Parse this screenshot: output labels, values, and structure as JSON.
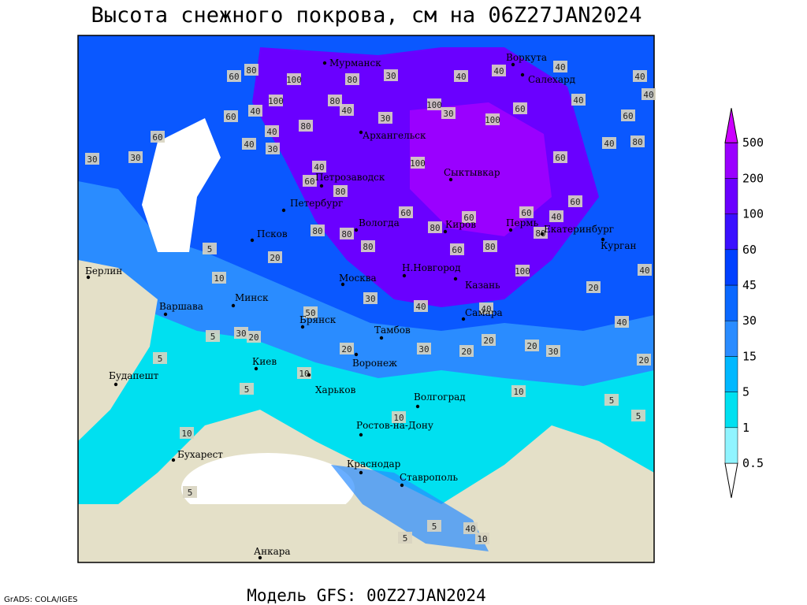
{
  "header": {
    "title": "Высота снежного покрова, см на 06Z27JAN2024"
  },
  "footer": {
    "model": "Модель GFS: 00Z27JAN2024",
    "credit": "GrADS: COLA/IGES"
  },
  "legend": {
    "levels": [
      0.5,
      1,
      5,
      15,
      30,
      45,
      60,
      100,
      200,
      500
    ],
    "colors": [
      "#ffffff",
      "#90f4ff",
      "#00e0f0",
      "#00b8ff",
      "#2a8cff",
      "#0a68ff",
      "#0040ff",
      "#3a10ff",
      "#6a00ff",
      "#9a00ff",
      "#cc00ff"
    ]
  },
  "map_labels": {
    "cities": [
      "Мурманск",
      "Воркута",
      "Салехард",
      "Архангельск",
      "Сыктывкар",
      "Петрозаводск",
      "Петербург",
      "Вологда",
      "Киров",
      "Пермь",
      "Екатеринбург",
      "Курган",
      "Псков",
      "Москва",
      "Н.Новгород",
      "Казань",
      "Берлин",
      "Минск",
      "Варшава",
      "Брянск",
      "Самара",
      "Тамбов",
      "Киев",
      "Воронеж",
      "Будапешт",
      "Харьков",
      "Волгоград",
      "Ростов-на-Дону",
      "Бухарест",
      "Краснодар",
      "Ставрополь",
      "Анкара"
    ],
    "contours": [
      60,
      80,
      100,
      80,
      30,
      40,
      40,
      40,
      40,
      40,
      100,
      40,
      60,
      80,
      40,
      100,
      30,
      30,
      100,
      60,
      40,
      60,
      60,
      30,
      30,
      40,
      30,
      80,
      40,
      100,
      60,
      40,
      80,
      40,
      60,
      80,
      60,
      60,
      60,
      40,
      60,
      80,
      80,
      80,
      80,
      60,
      80,
      80,
      20,
      5,
      10,
      100,
      40,
      50,
      30,
      40,
      40,
      20,
      30,
      20,
      20,
      30,
      20,
      20,
      20,
      30,
      40,
      20,
      5,
      5,
      10,
      5,
      10,
      5,
      5,
      10,
      5,
      10,
      5,
      5,
      40,
      10
    ]
  }
}
